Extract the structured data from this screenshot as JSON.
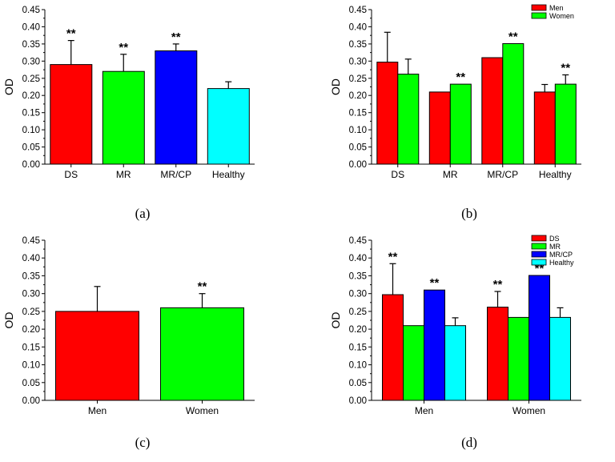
{
  "colors": {
    "DS": "#ff0000",
    "MR": "#00ff00",
    "MR/CP": "#0000ff",
    "Healthy": "#00ffff",
    "Men": "#ff0000",
    "Women": "#00ff00"
  },
  "chart_data": [
    {
      "panel": "(a)",
      "type": "bar",
      "ylabel": "OD",
      "ylim": [
        0,
        0.45
      ],
      "yticks": [
        "0.00",
        "0.05",
        "0.10",
        "0.15",
        "0.20",
        "0.25",
        "0.30",
        "0.35",
        "0.40",
        "0.45"
      ],
      "categories": [
        "DS",
        "MR",
        "MR/CP",
        "Healthy"
      ],
      "series": [
        {
          "name": "",
          "values": [
            0.29,
            0.27,
            0.33,
            0.22
          ],
          "errors": [
            0.07,
            0.05,
            0.02,
            0.02
          ],
          "colors": [
            "#ff0000",
            "#00ff00",
            "#0000ff",
            "#00ffff"
          ],
          "annotations": [
            "**",
            "**",
            "**",
            ""
          ]
        }
      ],
      "legend": null
    },
    {
      "panel": "(b)",
      "type": "bar",
      "ylabel": "OD",
      "ylim": [
        0,
        0.45
      ],
      "yticks": [
        "0.00",
        "0.05",
        "0.10",
        "0.15",
        "0.20",
        "0.25",
        "0.30",
        "0.35",
        "0.40",
        "0.45"
      ],
      "categories": [
        "DS",
        "MR",
        "MR/CP",
        "Healthy"
      ],
      "series": [
        {
          "name": "Men",
          "values": [
            0.297,
            0.21,
            0.31,
            0.21
          ],
          "errors": [
            0.087,
            0,
            0,
            0.022
          ],
          "colors": [
            "#ff0000",
            "#ff0000",
            "#ff0000",
            "#ff0000"
          ],
          "annotations": [
            "",
            "",
            "",
            ""
          ]
        },
        {
          "name": "Women",
          "values": [
            0.262,
            0.233,
            0.351,
            0.233
          ],
          "errors": [
            0.044,
            0,
            0,
            0.027
          ],
          "colors": [
            "#00ff00",
            "#00ff00",
            "#00ff00",
            "#00ff00"
          ],
          "annotations": [
            "",
            "**",
            "**",
            "**"
          ]
        }
      ],
      "legend": {
        "position": "top-right",
        "entries": [
          "Men",
          "Women"
        ]
      }
    },
    {
      "panel": "(c)",
      "type": "bar",
      "ylabel": "OD",
      "ylim": [
        0,
        0.45
      ],
      "yticks": [
        "0.00",
        "0.05",
        "0.10",
        "0.15",
        "0.20",
        "0.25",
        "0.30",
        "0.35",
        "0.40",
        "0.45"
      ],
      "categories": [
        "Men",
        "Women"
      ],
      "series": [
        {
          "name": "",
          "values": [
            0.25,
            0.26
          ],
          "errors": [
            0.07,
            0.04
          ],
          "colors": [
            "#ff0000",
            "#00ff00"
          ],
          "annotations": [
            "",
            "**"
          ]
        }
      ],
      "legend": null
    },
    {
      "panel": "(d)",
      "type": "bar",
      "ylabel": "OD",
      "ylim": [
        0,
        0.45
      ],
      "yticks": [
        "0.00",
        "0.05",
        "0.10",
        "0.15",
        "0.20",
        "0.25",
        "0.30",
        "0.35",
        "0.40",
        "0.45"
      ],
      "categories": [
        "Men",
        "Women"
      ],
      "series": [
        {
          "name": "DS",
          "values": [
            0.297,
            0.262
          ],
          "errors": [
            0.087,
            0.044
          ],
          "colors": [
            "#ff0000",
            "#ff0000"
          ],
          "annotations": [
            "**",
            "**"
          ]
        },
        {
          "name": "MR",
          "values": [
            0.21,
            0.233
          ],
          "errors": [
            0,
            0
          ],
          "colors": [
            "#00ff00",
            "#00ff00"
          ],
          "annotations": [
            "",
            ""
          ]
        },
        {
          "name": "MR/CP",
          "values": [
            0.31,
            0.351
          ],
          "errors": [
            0,
            0
          ],
          "colors": [
            "#0000ff",
            "#0000ff"
          ],
          "annotations": [
            "**",
            "**"
          ]
        },
        {
          "name": "Healthy",
          "values": [
            0.21,
            0.233
          ],
          "errors": [
            0.022,
            0.027
          ],
          "colors": [
            "#00ffff",
            "#00ffff"
          ],
          "annotations": [
            "",
            ""
          ]
        }
      ],
      "legend": {
        "position": "top-right",
        "entries": [
          "DS",
          "MR",
          "MR/CP",
          "Healthy"
        ]
      }
    }
  ]
}
